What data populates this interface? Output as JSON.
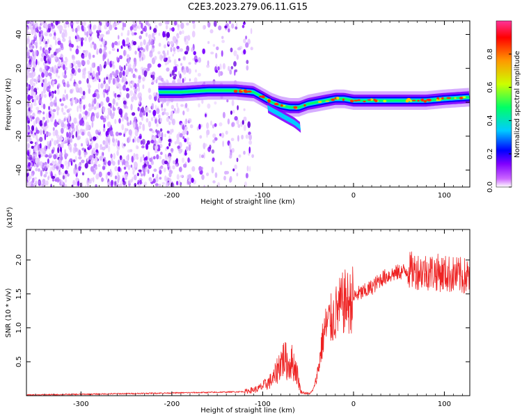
{
  "title": "C2E3.2023.279.06.11.G15",
  "chart_data": [
    {
      "type": "heatmap",
      "xlabel": "Height of straight line (km)",
      "ylabel": "Frequency (Hz)",
      "xlim": [
        -360,
        128
      ],
      "ylim": [
        -50,
        48
      ],
      "xticks": [
        -300,
        -200,
        -100,
        0,
        100
      ],
      "yticks": [
        -40,
        -20,
        0,
        20,
        40
      ],
      "grid": false,
      "colorbar": {
        "label": "Normalized spectral amplitude",
        "range": [
          0,
          1
        ],
        "ticks": [
          0.0,
          0.2,
          0.4,
          0.6,
          0.8
        ],
        "colors": [
          "#ffffff",
          "#cc66ff",
          "#8000ff",
          "#0000ff",
          "#00ccff",
          "#00ff66",
          "#ccff00",
          "#ff9900",
          "#ff0000",
          "#ff3399"
        ]
      },
      "ridge": {
        "x": [
          -215,
          -190,
          -160,
          -130,
          -110,
          -100,
          -90,
          -80,
          -70,
          -60,
          -50,
          -40,
          -30,
          -20,
          -10,
          0,
          20,
          40,
          60,
          80,
          100,
          128
        ],
        "y": [
          6,
          6,
          7,
          7,
          6,
          3,
          0,
          -2,
          -3,
          -3,
          -1,
          0,
          1,
          2,
          2,
          1,
          1,
          1,
          1,
          1,
          2,
          3
        ]
      },
      "branch": {
        "x": [
          -95,
          -85,
          -75,
          -65,
          -58
        ],
        "y": [
          -3,
          -6,
          -9,
          -12,
          -15
        ]
      }
    },
    {
      "type": "line",
      "xlabel": "Height of straight line (km)",
      "ylabel": "SNR (10 * v/v)",
      "yscale_label": "(x10⁴)",
      "xlim": [
        -360,
        128
      ],
      "ylim": [
        0,
        2.45
      ],
      "xticks": [
        -300,
        -200,
        -100,
        0,
        100
      ],
      "yticks": [
        0.5,
        1.0,
        1.5,
        2.0
      ],
      "grid": false,
      "color": "#ee2222",
      "series": [
        {
          "x": [
            -360,
            -300,
            -250,
            -200,
            -150,
            -120,
            -105,
            -95,
            -88,
            -85,
            -80,
            -76,
            -72,
            -68,
            -63,
            -58,
            -54,
            -50,
            -47,
            -44,
            -41,
            -38,
            -35,
            -32,
            -29,
            -26,
            -22,
            -18,
            -15,
            -12,
            -8,
            -5,
            0,
            5,
            10,
            15,
            20,
            25,
            30,
            35,
            40,
            45,
            50,
            60,
            70,
            80,
            90,
            100,
            110,
            120,
            128
          ],
          "y": [
            0.01,
            0.02,
            0.03,
            0.04,
            0.05,
            0.06,
            0.1,
            0.18,
            0.25,
            0.35,
            0.5,
            0.55,
            0.45,
            0.5,
            0.38,
            0.06,
            0.04,
            0.03,
            0.04,
            0.1,
            0.25,
            0.45,
            0.75,
            0.95,
            1.05,
            1.1,
            1.15,
            1.25,
            1.3,
            1.35,
            1.4,
            1.35,
            1.45,
            1.5,
            1.52,
            1.55,
            1.6,
            1.65,
            1.72,
            1.75,
            1.78,
            1.8,
            1.82,
            1.85,
            1.84,
            1.83,
            1.82,
            1.8,
            1.78,
            1.76,
            1.75
          ]
        }
      ]
    }
  ]
}
